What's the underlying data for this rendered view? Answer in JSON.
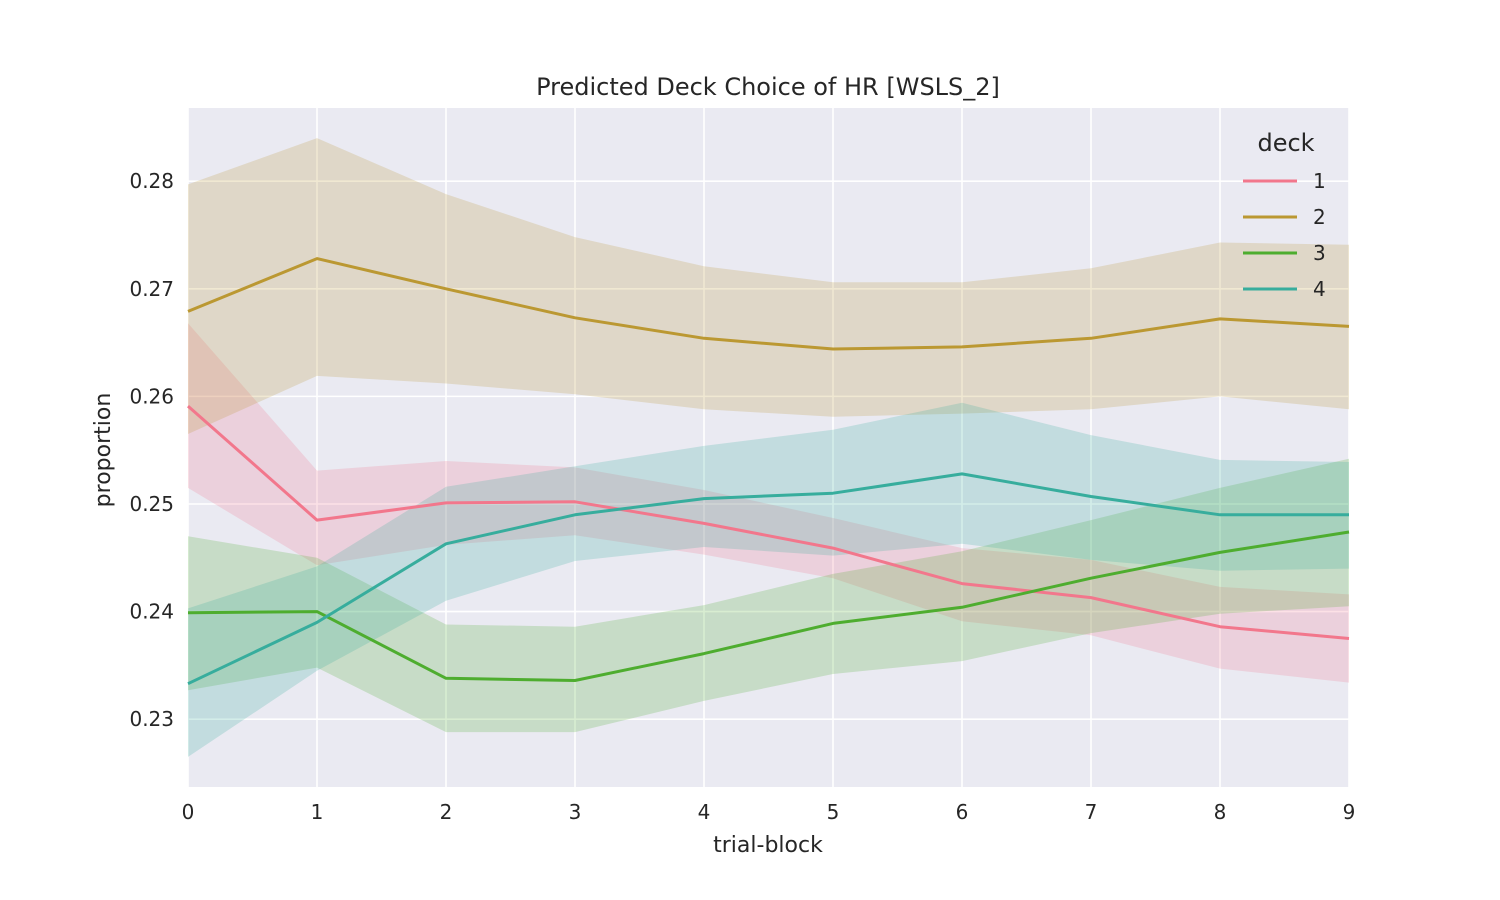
{
  "chart_data": {
    "type": "line",
    "title": "Predicted Deck Choice of HR [WSLS_2]",
    "xlabel": "trial-block",
    "ylabel": "proportion",
    "x": [
      0,
      1,
      2,
      3,
      4,
      5,
      6,
      7,
      8,
      9
    ],
    "x_ticks": [
      "0",
      "1",
      "2",
      "3",
      "4",
      "5",
      "6",
      "7",
      "8",
      "9"
    ],
    "y_ticks": [
      "0.23",
      "0.24",
      "0.25",
      "0.26",
      "0.27",
      "0.28"
    ],
    "y_tick_values": [
      0.23,
      0.24,
      0.25,
      0.26,
      0.27,
      0.28
    ],
    "xlim": [
      0,
      9
    ],
    "ylim": [
      0.2237,
      0.2868
    ],
    "grid": true,
    "legend": {
      "title": "deck",
      "placement": "top-right"
    },
    "series": [
      {
        "name": "1",
        "color": "#f2778c",
        "values": [
          0.2591,
          0.2485,
          0.2501,
          0.2502,
          0.2482,
          0.2459,
          0.2426,
          0.2413,
          0.2386,
          0.2375
        ],
        "lower": [
          0.2515,
          0.2443,
          0.2462,
          0.2471,
          0.2453,
          0.2431,
          0.2391,
          0.2378,
          0.2347,
          0.2334
        ],
        "upper": [
          0.2668,
          0.2531,
          0.254,
          0.2534,
          0.2513,
          0.2487,
          0.2459,
          0.2448,
          0.2423,
          0.2416
        ]
      },
      {
        "name": "2",
        "color": "#bb9832",
        "values": [
          0.2679,
          0.2728,
          0.27,
          0.2673,
          0.2654,
          0.2644,
          0.2646,
          0.2654,
          0.2672,
          0.2665
        ],
        "lower": [
          0.2565,
          0.2619,
          0.2612,
          0.2602,
          0.2588,
          0.2581,
          0.2584,
          0.2588,
          0.26,
          0.2588
        ],
        "upper": [
          0.2797,
          0.284,
          0.2788,
          0.2748,
          0.2721,
          0.2706,
          0.2706,
          0.2719,
          0.2743,
          0.2741
        ]
      },
      {
        "name": "3",
        "color": "#4ead2f",
        "values": [
          0.2399,
          0.24,
          0.2338,
          0.2336,
          0.2361,
          0.2389,
          0.2404,
          0.2431,
          0.2455,
          0.2474
        ],
        "lower": [
          0.2327,
          0.2348,
          0.2288,
          0.2288,
          0.2317,
          0.2342,
          0.2354,
          0.238,
          0.2398,
          0.2405
        ],
        "upper": [
          0.247,
          0.245,
          0.2388,
          0.2386,
          0.2406,
          0.2435,
          0.2456,
          0.2485,
          0.2515,
          0.2542
        ]
      },
      {
        "name": "4",
        "color": "#37ad9d",
        "values": [
          0.2333,
          0.239,
          0.2463,
          0.249,
          0.2505,
          0.251,
          0.2528,
          0.2507,
          0.249,
          0.249
        ],
        "lower": [
          0.2265,
          0.2345,
          0.241,
          0.2447,
          0.246,
          0.2452,
          0.2463,
          0.2448,
          0.2438,
          0.244
        ],
        "upper": [
          0.2403,
          0.2442,
          0.2516,
          0.2535,
          0.2554,
          0.2569,
          0.2594,
          0.2564,
          0.2541,
          0.2539
        ]
      }
    ]
  }
}
